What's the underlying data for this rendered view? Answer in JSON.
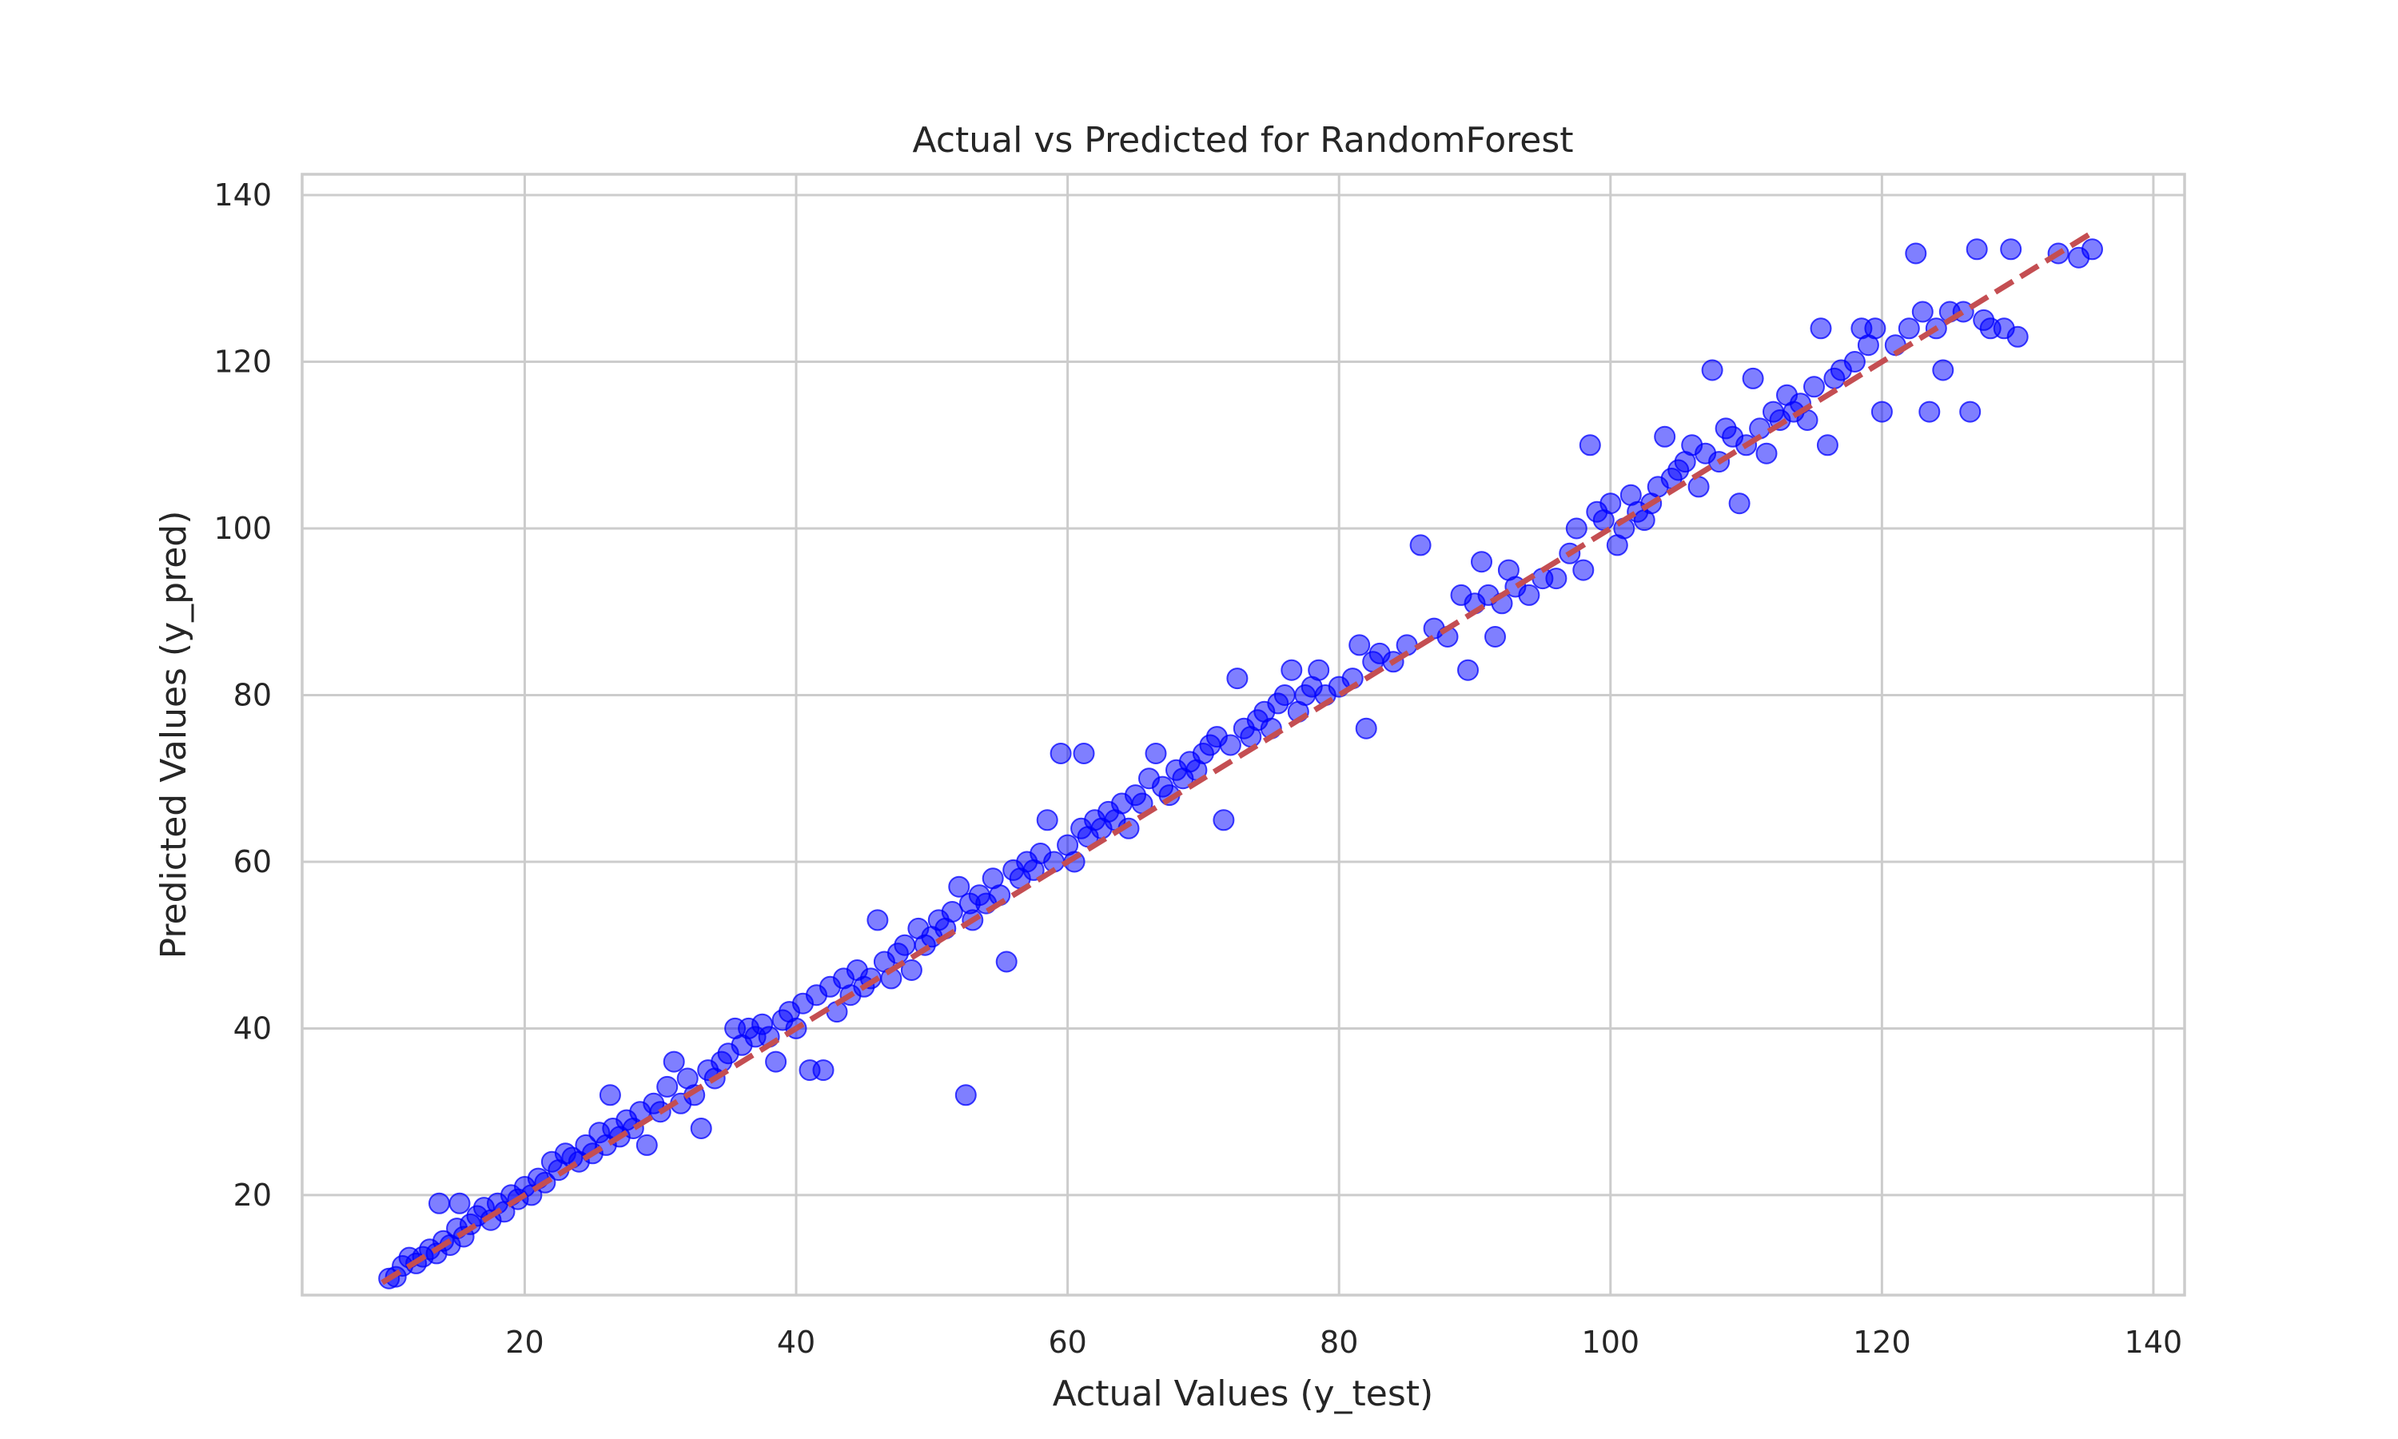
{
  "chart_data": {
    "type": "scatter",
    "title": "Actual vs Predicted for RandomForest",
    "xlabel": "Actual Values (y_test)",
    "ylabel": "Predicted Values (y_pred)",
    "xlim": [
      3.6,
      142.3
    ],
    "ylim": [
      8.0,
      142.5
    ],
    "xticks": [
      20,
      40,
      60,
      80,
      100,
      120,
      140
    ],
    "yticks": [
      20,
      40,
      60,
      80,
      100,
      120,
      140
    ],
    "grid": true,
    "colors": {
      "points": "#0000ff",
      "reference_line": "#c44e52",
      "grid": "#cccccc",
      "text": "#262626"
    },
    "reference_line": {
      "style": "dashed",
      "from": [
        9.5,
        9.5
      ],
      "to": [
        135.5,
        135.5
      ]
    },
    "series": [
      {
        "marker": "circle",
        "alpha": 0.5,
        "points": [
          [
            10,
            10
          ],
          [
            10.5,
            10.2
          ],
          [
            11,
            11.5
          ],
          [
            11.5,
            12.5
          ],
          [
            12,
            11.8
          ],
          [
            12.5,
            12.6
          ],
          [
            13,
            13.5
          ],
          [
            13.5,
            13
          ],
          [
            13.7,
            19
          ],
          [
            14,
            14.5
          ],
          [
            14.5,
            14
          ],
          [
            15,
            16
          ],
          [
            15.2,
            19
          ],
          [
            15.5,
            15
          ],
          [
            16,
            16.5
          ],
          [
            16.5,
            17.5
          ],
          [
            17,
            18.5
          ],
          [
            17.5,
            17
          ],
          [
            18,
            19
          ],
          [
            18.5,
            18
          ],
          [
            19,
            20
          ],
          [
            19.5,
            19.5
          ],
          [
            20,
            21
          ],
          [
            20.5,
            20
          ],
          [
            21,
            22
          ],
          [
            21.5,
            21.5
          ],
          [
            22,
            24
          ],
          [
            22.5,
            23
          ],
          [
            23,
            25
          ],
          [
            23.5,
            24.5
          ],
          [
            24,
            24
          ],
          [
            24.5,
            26
          ],
          [
            25,
            25
          ],
          [
            25.5,
            27.5
          ],
          [
            26,
            26
          ],
          [
            26.3,
            32
          ],
          [
            26.5,
            28
          ],
          [
            27,
            27
          ],
          [
            27.5,
            29
          ],
          [
            28,
            28
          ],
          [
            28.5,
            30
          ],
          [
            29,
            26
          ],
          [
            29.5,
            31
          ],
          [
            30,
            30
          ],
          [
            30.5,
            33
          ],
          [
            31,
            36
          ],
          [
            31.5,
            31
          ],
          [
            32,
            34
          ],
          [
            32.5,
            32
          ],
          [
            33,
            28
          ],
          [
            33.5,
            35
          ],
          [
            34,
            34
          ],
          [
            34.5,
            36
          ],
          [
            35,
            37
          ],
          [
            35.5,
            40
          ],
          [
            36,
            38
          ],
          [
            36.5,
            40
          ],
          [
            37,
            39
          ],
          [
            37.5,
            40.5
          ],
          [
            38,
            39
          ],
          [
            38.5,
            36
          ],
          [
            39,
            41
          ],
          [
            39.5,
            42
          ],
          [
            40,
            40
          ],
          [
            40.5,
            43
          ],
          [
            41,
            35
          ],
          [
            41.5,
            44
          ],
          [
            42,
            35
          ],
          [
            42.5,
            45
          ],
          [
            43,
            42
          ],
          [
            43.5,
            46
          ],
          [
            44,
            44
          ],
          [
            44.5,
            47
          ],
          [
            45,
            45
          ],
          [
            45.5,
            46
          ],
          [
            46,
            53
          ],
          [
            46.5,
            48
          ],
          [
            47,
            46
          ],
          [
            47.5,
            49
          ],
          [
            48,
            50
          ],
          [
            48.5,
            47
          ],
          [
            49,
            52
          ],
          [
            49.5,
            50
          ],
          [
            50,
            51
          ],
          [
            50.5,
            53
          ],
          [
            51,
            52
          ],
          [
            51.5,
            54
          ],
          [
            52,
            57
          ],
          [
            52.5,
            32
          ],
          [
            52.8,
            55
          ],
          [
            53,
            53
          ],
          [
            53.5,
            56
          ],
          [
            54,
            55
          ],
          [
            54.5,
            58
          ],
          [
            55,
            56
          ],
          [
            55.5,
            48
          ],
          [
            56,
            59
          ],
          [
            56.5,
            58
          ],
          [
            57,
            60
          ],
          [
            57.5,
            59
          ],
          [
            58,
            61
          ],
          [
            58.5,
            65
          ],
          [
            59,
            60
          ],
          [
            59.5,
            73
          ],
          [
            60,
            62
          ],
          [
            60.5,
            60
          ],
          [
            61,
            64
          ],
          [
            61.2,
            73
          ],
          [
            61.5,
            63
          ],
          [
            62,
            65
          ],
          [
            62.5,
            64
          ],
          [
            63,
            66
          ],
          [
            63.5,
            65
          ],
          [
            64,
            67
          ],
          [
            64.5,
            64
          ],
          [
            65,
            68
          ],
          [
            65.5,
            67
          ],
          [
            66,
            70
          ],
          [
            66.5,
            73
          ],
          [
            67,
            69
          ],
          [
            67.5,
            68
          ],
          [
            68,
            71
          ],
          [
            68.5,
            70
          ],
          [
            69,
            72
          ],
          [
            69.5,
            71
          ],
          [
            70,
            73
          ],
          [
            70.5,
            74
          ],
          [
            71,
            75
          ],
          [
            71.5,
            65
          ],
          [
            72,
            74
          ],
          [
            72.5,
            82
          ],
          [
            73,
            76
          ],
          [
            73.5,
            75
          ],
          [
            74,
            77
          ],
          [
            74.5,
            78
          ],
          [
            75,
            76
          ],
          [
            75.5,
            79
          ],
          [
            76,
            80
          ],
          [
            76.5,
            83
          ],
          [
            77,
            78
          ],
          [
            77.5,
            80
          ],
          [
            78,
            81
          ],
          [
            78.5,
            83
          ],
          [
            79,
            80
          ],
          [
            80,
            81
          ],
          [
            81,
            82
          ],
          [
            81.5,
            86
          ],
          [
            82,
            76
          ],
          [
            82.5,
            84
          ],
          [
            83,
            85
          ],
          [
            84,
            84
          ],
          [
            85,
            86
          ],
          [
            86,
            98
          ],
          [
            87,
            88
          ],
          [
            88,
            87
          ],
          [
            89,
            92
          ],
          [
            89.5,
            83
          ],
          [
            90,
            91
          ],
          [
            90.5,
            96
          ],
          [
            91,
            92
          ],
          [
            91.5,
            87
          ],
          [
            92,
            91
          ],
          [
            92.5,
            95
          ],
          [
            93,
            93
          ],
          [
            94,
            92
          ],
          [
            95,
            94
          ],
          [
            96,
            94
          ],
          [
            97,
            97
          ],
          [
            97.5,
            100
          ],
          [
            98,
            95
          ],
          [
            98.5,
            110
          ],
          [
            99,
            102
          ],
          [
            99.5,
            101
          ],
          [
            100,
            103
          ],
          [
            100.5,
            98
          ],
          [
            101,
            100
          ],
          [
            101.5,
            104
          ],
          [
            102,
            102
          ],
          [
            102.5,
            101
          ],
          [
            103,
            103
          ],
          [
            103.5,
            105
          ],
          [
            104,
            111
          ],
          [
            104.5,
            106
          ],
          [
            105,
            107
          ],
          [
            105.5,
            108
          ],
          [
            106,
            110
          ],
          [
            106.5,
            105
          ],
          [
            107,
            109
          ],
          [
            107.5,
            119
          ],
          [
            108,
            108
          ],
          [
            108.5,
            112
          ],
          [
            109,
            111
          ],
          [
            109.5,
            103
          ],
          [
            110,
            110
          ],
          [
            110.5,
            118
          ],
          [
            111,
            112
          ],
          [
            111.5,
            109
          ],
          [
            112,
            114
          ],
          [
            112.5,
            113
          ],
          [
            113,
            116
          ],
          [
            113.5,
            114
          ],
          [
            114,
            115
          ],
          [
            114.5,
            113
          ],
          [
            115,
            117
          ],
          [
            115.5,
            124
          ],
          [
            116,
            110
          ],
          [
            116.5,
            118
          ],
          [
            117,
            119
          ],
          [
            118,
            120
          ],
          [
            118.5,
            124
          ],
          [
            119,
            122
          ],
          [
            119.5,
            124
          ],
          [
            120,
            114
          ],
          [
            121,
            122
          ],
          [
            122,
            124
          ],
          [
            122.5,
            133
          ],
          [
            123,
            126
          ],
          [
            123.5,
            114
          ],
          [
            124,
            124
          ],
          [
            124.5,
            119
          ],
          [
            125,
            126
          ],
          [
            126,
            126
          ],
          [
            126.5,
            114
          ],
          [
            127,
            133.5
          ],
          [
            127.5,
            125
          ],
          [
            128,
            124
          ],
          [
            129,
            124
          ],
          [
            129.5,
            133.5
          ],
          [
            130,
            123
          ],
          [
            133,
            133
          ],
          [
            134.5,
            132.5
          ],
          [
            135.5,
            133.5
          ]
        ]
      }
    ]
  }
}
